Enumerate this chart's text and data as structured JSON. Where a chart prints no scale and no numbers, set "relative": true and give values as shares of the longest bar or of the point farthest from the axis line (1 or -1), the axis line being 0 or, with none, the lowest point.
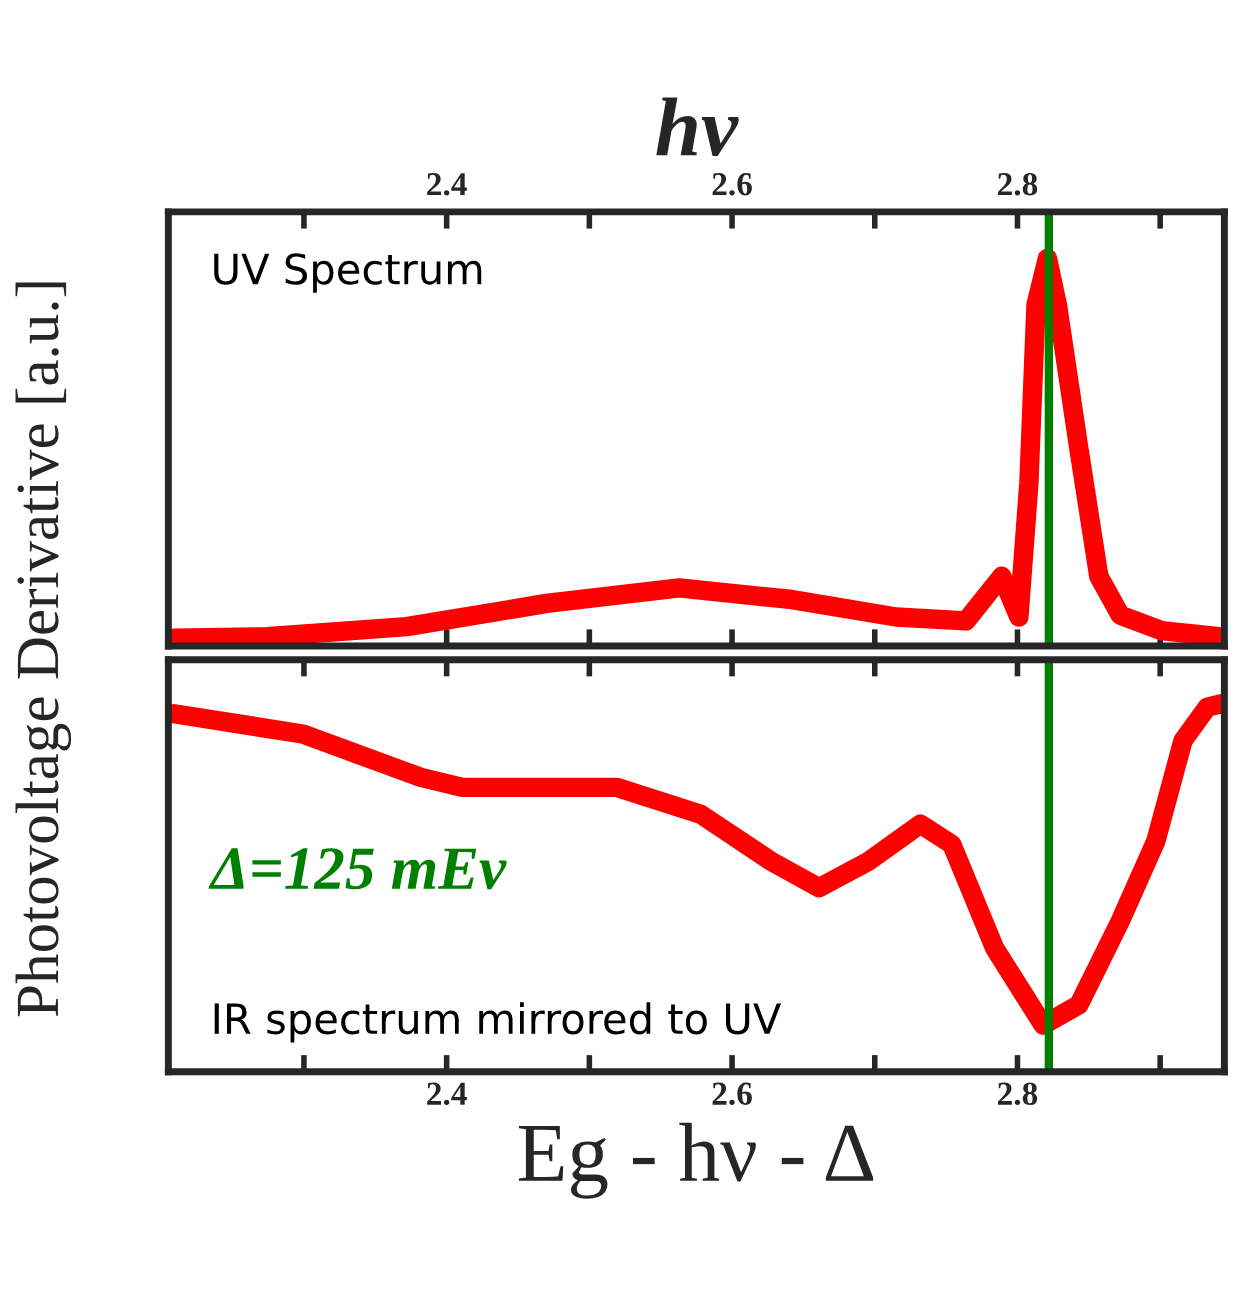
{
  "chart_data": [
    {
      "type": "line",
      "relative": true,
      "ylabel": "Photovoltage Derivative [a.u.]",
      "xlabel": "hν",
      "xlim": [
        2.205,
        2.945
      ],
      "xticks": [
        {
          "value": 2.3,
          "label": null
        },
        2.4,
        {
          "value": 2.5,
          "label": null
        },
        2.6,
        {
          "value": 2.7,
          "label": null
        },
        2.8,
        {
          "value": 2.9,
          "label": null
        }
      ],
      "x": [
        2.209,
        2.274,
        2.372,
        2.47,
        2.563,
        2.642,
        2.715,
        2.764,
        2.789,
        2.801,
        2.808,
        2.813,
        2.821,
        2.828,
        2.843,
        2.857,
        2.872,
        2.901,
        2.941
      ],
      "series": [
        {
          "color": "#ff0000",
          "values": [
            0.02,
            0.024,
            0.05,
            0.11,
            0.15,
            0.12,
            0.075,
            0.065,
            0.18,
            0.075,
            0.42,
            0.88,
            1.0,
            0.88,
            0.51,
            0.18,
            0.08,
            0.04,
            0.024
          ]
        }
      ],
      "ref_lines": [
        {
          "axis": "x",
          "value": 2.822,
          "color": "#008000"
        }
      ],
      "annotations": [
        "UV Spectrum"
      ]
    },
    {
      "type": "line",
      "relative": true,
      "xlabel": "Eg - hν - Δ",
      "xlim": [
        2.205,
        2.945
      ],
      "xticks": [
        {
          "value": 2.3,
          "label": null
        },
        2.4,
        {
          "value": 2.5,
          "label": null
        },
        2.6,
        {
          "value": 2.7,
          "label": null
        },
        2.8,
        {
          "value": 2.9,
          "label": null
        }
      ],
      "x": [
        2.209,
        2.299,
        2.382,
        2.411,
        2.519,
        2.578,
        2.627,
        2.661,
        2.696,
        2.732,
        2.754,
        2.784,
        2.818,
        2.843,
        2.872,
        2.897,
        2.916,
        2.933,
        2.943
      ],
      "series": [
        {
          "color": "#ff0000",
          "values": [
            0.973,
            0.918,
            0.8,
            0.773,
            0.773,
            0.7,
            0.573,
            0.5,
            0.573,
            0.673,
            0.618,
            0.336,
            0.127,
            0.182,
            0.409,
            0.627,
            0.9,
            0.991,
            1.0
          ]
        }
      ],
      "ref_lines": [
        {
          "axis": "x",
          "value": 2.822,
          "color": "#008000"
        }
      ],
      "annotations": [
        "Δ=125 mEv",
        "IR spectrum mirrored to UV"
      ]
    }
  ]
}
